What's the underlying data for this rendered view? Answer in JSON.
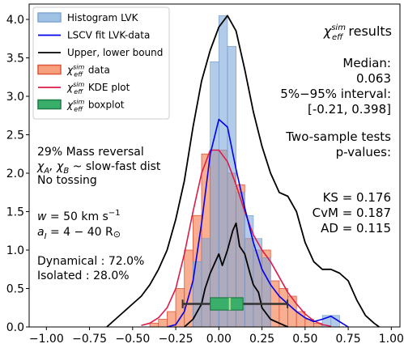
{
  "chart_data": {
    "type": "bar",
    "title": "",
    "xlabel": "",
    "ylabel": "",
    "xlim": [
      -1.1,
      1.05
    ],
    "ylim": [
      0,
      4.2
    ],
    "grid": false,
    "legend_position": "top-left",
    "x_ticks": [
      -1.0,
      -0.75,
      -0.5,
      -0.25,
      0.0,
      0.25,
      0.5,
      0.75,
      1.0
    ],
    "x_tick_labels": [
      "−1.00",
      "−0.75",
      "−0.50",
      "−0.25",
      "0.00",
      "0.25",
      "0.50",
      "0.75",
      "1.00"
    ],
    "y_ticks": [
      0.0,
      0.5,
      1.0,
      1.5,
      2.0,
      2.5,
      3.0,
      3.5,
      4.0
    ],
    "y_tick_labels": [
      "0.0",
      "0.5",
      "1.0",
      "1.5",
      "2.0",
      "2.5",
      "3.0",
      "3.5",
      "4.0"
    ],
    "legend": [
      {
        "label": "Histogram LVK",
        "key": "hist_lvk",
        "style": "patch",
        "color": "#9fc1e4",
        "edge": "#7fa8d3"
      },
      {
        "label": "LSCV fit LVK-data",
        "key": "lscv",
        "style": "line",
        "color": "#0000ee"
      },
      {
        "label": "Upper, lower bound",
        "key": "bounds",
        "style": "line",
        "color": "#000000"
      },
      {
        "label": "data",
        "prefix": "χ",
        "sup": "sim",
        "sub": "eff",
        "key": "hist_sim",
        "style": "patch",
        "color": "#f7a07e",
        "edge": "#e0553a"
      },
      {
        "label": "KDE plot",
        "prefix": "χ",
        "sup": "sim",
        "sub": "eff",
        "key": "kde_sim",
        "style": "line",
        "color": "#dd1c4a"
      },
      {
        "label": "boxplot",
        "prefix": "χ",
        "sup": "sim",
        "sub": "eff",
        "key": "box",
        "style": "patch",
        "color": "#3aae6b",
        "edge": "#1f7a45"
      }
    ],
    "hist_lvk": {
      "bin_width": 0.05,
      "centers": [
        -0.125,
        -0.075,
        -0.025,
        0.025,
        0.075,
        0.125,
        0.175,
        0.225,
        0.275,
        0.625,
        0.675
      ],
      "heights": [
        0.85,
        1.15,
        3.45,
        4.05,
        3.65,
        1.75,
        1.45,
        1.15,
        0.9,
        0.15,
        0.15
      ]
    },
    "hist_sim": {
      "bin_width": 0.05,
      "centers": [
        -0.375,
        -0.325,
        -0.275,
        -0.225,
        -0.175,
        -0.125,
        -0.075,
        -0.025,
        0.025,
        0.075,
        0.125,
        0.175,
        0.225,
        0.275,
        0.325,
        0.375,
        0.425,
        0.475,
        0.525,
        0.575
      ],
      "heights": [
        0.05,
        0.1,
        0.2,
        0.5,
        1.0,
        1.45,
        2.25,
        2.3,
        2.3,
        2.0,
        1.85,
        1.15,
        1.0,
        1.0,
        0.6,
        0.5,
        0.4,
        0.2,
        0.1,
        0.05
      ]
    },
    "lscv_fit": {
      "x": [
        -0.3,
        -0.25,
        -0.2,
        -0.15,
        -0.1,
        -0.05,
        0.0,
        0.05,
        0.1,
        0.15,
        0.2,
        0.25,
        0.3,
        0.35,
        0.4,
        0.45,
        0.5,
        0.55,
        0.6,
        0.65,
        0.7,
        0.75
      ],
      "y": [
        0.0,
        0.03,
        0.2,
        0.6,
        1.35,
        2.25,
        2.7,
        2.6,
        2.05,
        1.55,
        1.1,
        0.75,
        0.55,
        0.4,
        0.3,
        0.2,
        0.12,
        0.07,
        0.1,
        0.14,
        0.07,
        0.0
      ]
    },
    "upper_bound": {
      "x": [
        -0.65,
        -0.6,
        -0.55,
        -0.5,
        -0.45,
        -0.4,
        -0.35,
        -0.3,
        -0.25,
        -0.2,
        -0.15,
        -0.1,
        -0.05,
        0.0,
        0.05,
        0.1,
        0.15,
        0.2,
        0.25,
        0.3,
        0.35,
        0.4,
        0.45,
        0.5,
        0.55,
        0.6,
        0.65,
        0.7,
        0.75,
        0.8,
        0.85,
        0.9,
        0.93
      ],
      "y": [
        0.0,
        0.1,
        0.2,
        0.3,
        0.4,
        0.55,
        0.75,
        1.0,
        1.4,
        1.9,
        2.6,
        3.2,
        3.6,
        3.9,
        4.05,
        3.85,
        3.35,
        2.8,
        2.35,
        2.0,
        1.75,
        1.7,
        1.5,
        1.1,
        0.85,
        0.75,
        0.75,
        0.7,
        0.6,
        0.35,
        0.15,
        0.05,
        0.0
      ]
    },
    "lower_bound": {
      "x": [
        -0.2,
        -0.15,
        -0.1,
        -0.08,
        -0.05,
        0.0,
        0.02,
        0.05,
        0.08,
        0.1,
        0.12,
        0.15,
        0.18,
        0.2,
        0.23,
        0.25,
        0.3,
        0.35,
        0.4
      ],
      "y": [
        0.0,
        0.1,
        0.3,
        0.5,
        0.7,
        0.95,
        0.8,
        1.0,
        1.25,
        1.35,
        1.05,
        0.95,
        0.7,
        0.55,
        0.45,
        0.25,
        0.1,
        0.05,
        0.0
      ]
    },
    "kde_sim": {
      "x": [
        -0.45,
        -0.4,
        -0.35,
        -0.3,
        -0.25,
        -0.2,
        -0.15,
        -0.1,
        -0.05,
        0.0,
        0.05,
        0.1,
        0.15,
        0.2,
        0.25,
        0.3,
        0.35,
        0.4,
        0.45,
        0.5,
        0.55,
        0.6,
        0.65
      ],
      "y": [
        0.02,
        0.05,
        0.12,
        0.25,
        0.5,
        0.95,
        1.5,
        2.0,
        2.3,
        2.3,
        2.15,
        1.85,
        1.5,
        1.2,
        1.0,
        0.85,
        0.65,
        0.45,
        0.3,
        0.17,
        0.08,
        0.03,
        0.01
      ]
    },
    "boxplot": {
      "whisker_low": -0.21,
      "q1": -0.05,
      "median": 0.063,
      "q3": 0.14,
      "whisker_high": 0.398,
      "y_center": 0.3,
      "half_height": 0.08,
      "color": "#3aae6b",
      "median_color": "#b8e08a"
    }
  },
  "annotations": {
    "results_title_prefix": "χ",
    "results_title_sup": "sim",
    "results_title_sub": "eff",
    "results_title_suffix": " results",
    "median_label": "Median:",
    "median_value": "0.063",
    "interval_label": "5%−95% interval:",
    "interval_value": "[-0.21, 0.398]",
    "tests_label_1": "Two-sample tests",
    "tests_label_2": "p-values:",
    "ks": "KS = 0.176",
    "cvm": "CvM = 0.187",
    "ad": "AD = 0.115",
    "mass_reversal": "29% Mass reversal",
    "chi_line_a": "χ",
    "chi_line_a_sub": "A",
    "chi_line_mid": ", χ",
    "chi_line_b_sub": "B",
    "chi_line_rest": " ~  slow-fast dist",
    "tossing": "No tossing",
    "w_prefix": "w",
    "w_rest": " = 50 km s",
    "w_sup": "−1",
    "a_prefix": "a",
    "a_sub": "I",
    "a_rest": " = 4 − 40 R",
    "a_symbol": "⊙",
    "dynamical": "Dynamical : 72.0%",
    "isolated": "Isolated : 28.0%"
  }
}
